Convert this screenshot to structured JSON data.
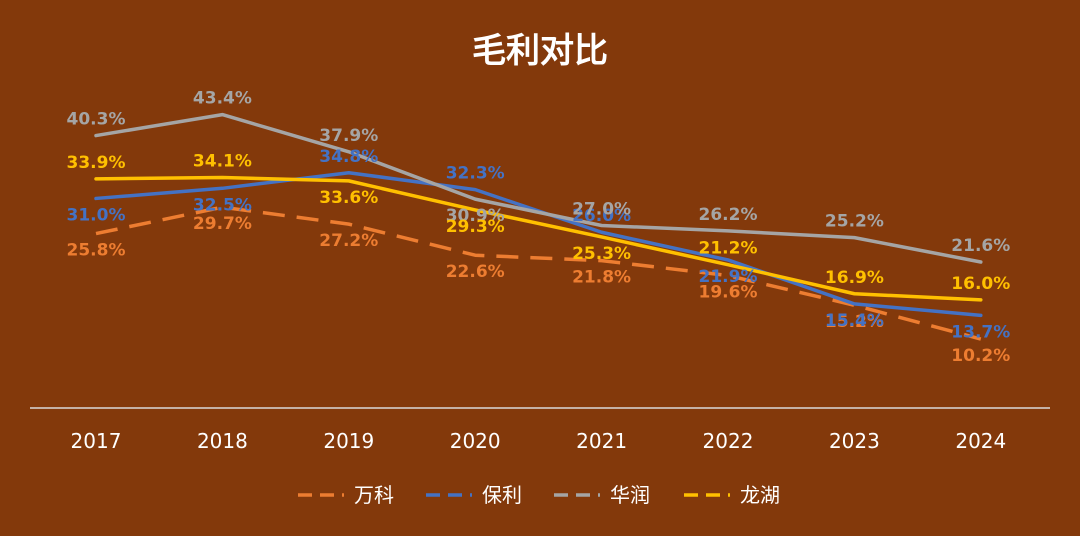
{
  "chart_data": {
    "type": "line",
    "title": "毛利对比",
    "xlabel": "",
    "ylabel": "",
    "categories": [
      "2017",
      "2018",
      "2019",
      "2020",
      "2021",
      "2022",
      "2023",
      "2024"
    ],
    "ylim": [
      0,
      50
    ],
    "grid": false,
    "legend_position": "bottom",
    "series": [
      {
        "name": "万科",
        "values": [
          25.8,
          29.7,
          27.2,
          22.6,
          21.8,
          19.6,
          15.2,
          10.2
        ],
        "labels": [
          "25.8%",
          "29.7%",
          "27.2%",
          "22.6%",
          "21.8%",
          "19.6%",
          "15.2%",
          "10.2%"
        ],
        "color": "#ed7d31",
        "dashed": true
      },
      {
        "name": "保利",
        "values": [
          31.0,
          32.5,
          34.8,
          32.3,
          26.0,
          21.9,
          15.4,
          13.7
        ],
        "labels": [
          "31.0%",
          "32.5%",
          "34.8%",
          "32.3%",
          "26.0%",
          "21.9%",
          "15.4%",
          "13.7%"
        ],
        "color": "#4472c4",
        "dashed": false
      },
      {
        "name": "华润",
        "values": [
          40.3,
          43.4,
          37.9,
          30.9,
          27.0,
          26.2,
          25.2,
          21.6
        ],
        "labels": [
          "40.3%",
          "43.4%",
          "37.9%",
          "30.9%",
          "27.0%",
          "26.2%",
          "25.2%",
          "21.6%"
        ],
        "color": "#a5a5a5",
        "dashed": false
      },
      {
        "name": "龙湖",
        "values": [
          33.9,
          34.1,
          33.6,
          29.3,
          25.3,
          21.2,
          16.9,
          16.0
        ],
        "labels": [
          "33.9%",
          "34.1%",
          "33.6%",
          "29.3%",
          "25.3%",
          "21.2%",
          "16.9%",
          "16.0%"
        ],
        "color": "#ffc000",
        "dashed": false
      }
    ]
  }
}
